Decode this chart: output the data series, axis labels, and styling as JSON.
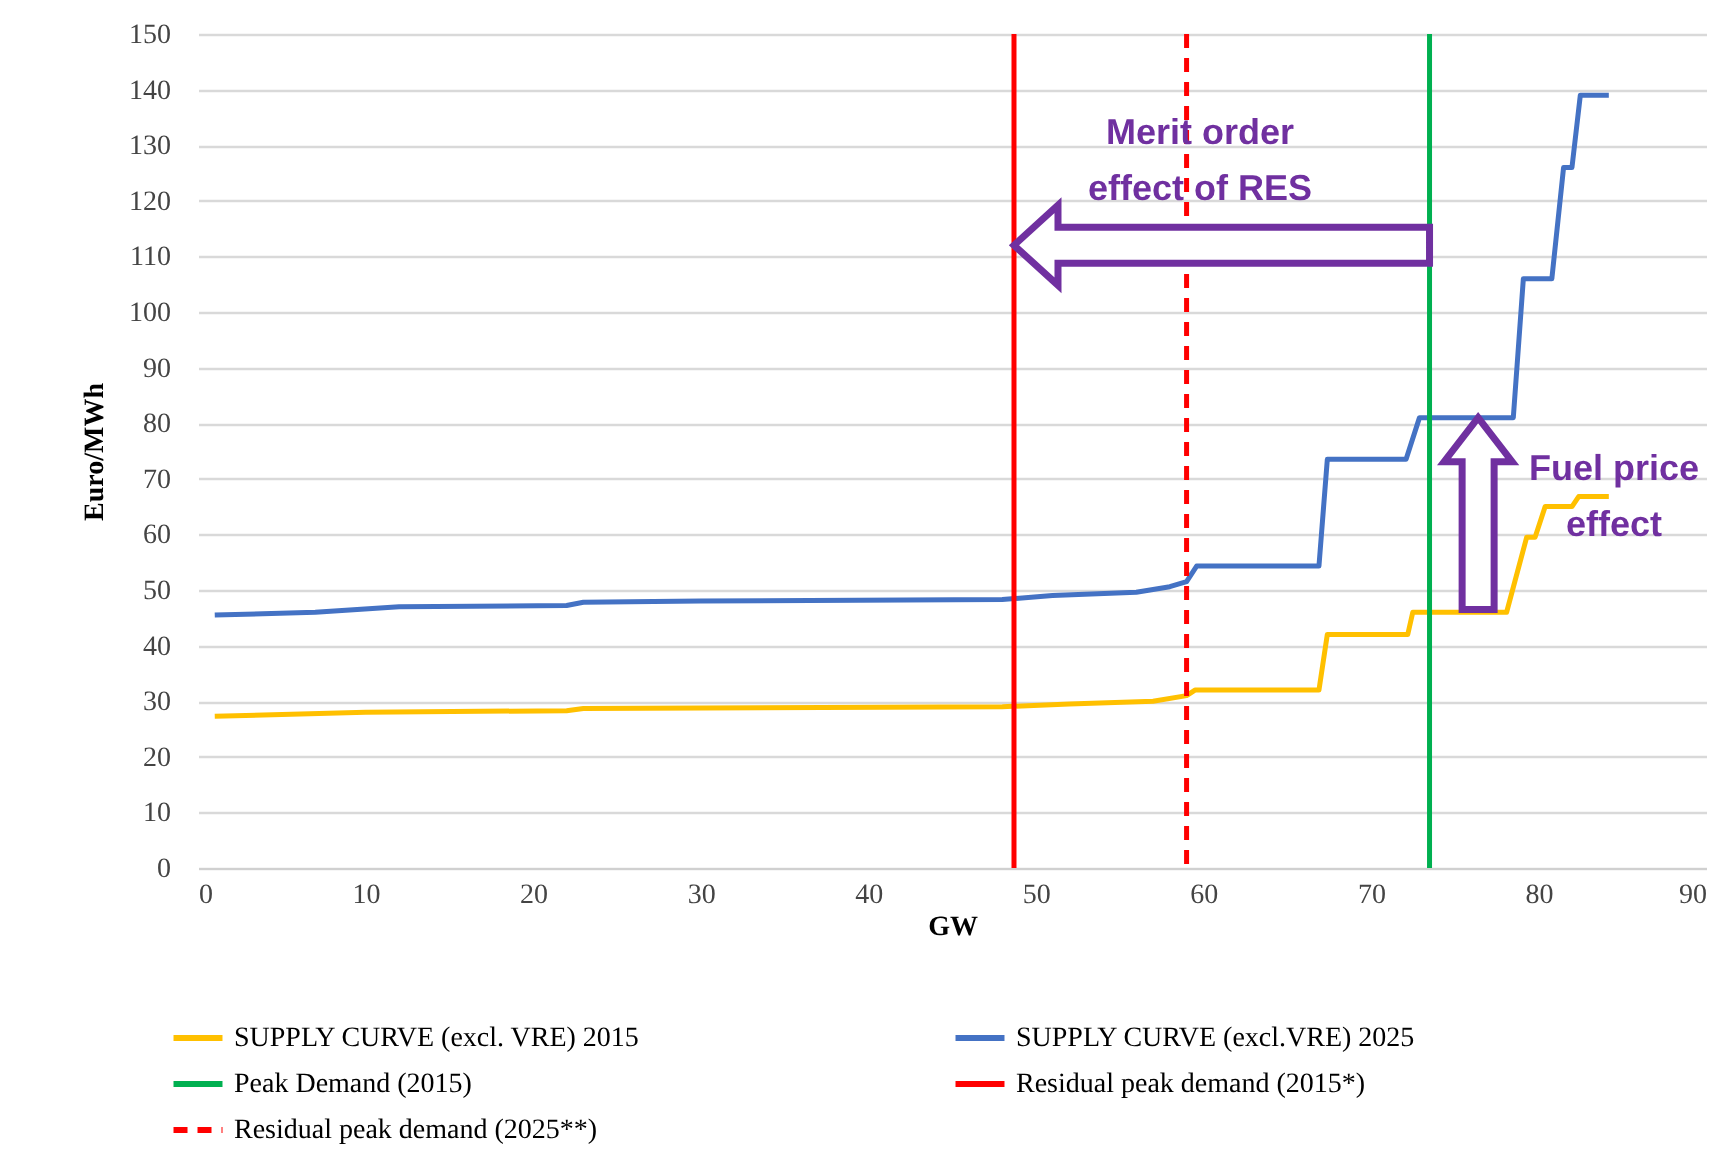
{
  "chart_data": {
    "type": "line",
    "xlabel": "GW",
    "ylabel": "Euro/MWh",
    "xlim": [
      0,
      90
    ],
    "xticks": [
      0,
      10,
      20,
      30,
      40,
      50,
      60,
      70,
      80,
      90
    ],
    "ylim": [
      0,
      150
    ],
    "yticks": [
      0,
      10,
      20,
      30,
      40,
      50,
      60,
      70,
      80,
      90,
      100,
      110,
      120,
      130,
      140,
      150
    ],
    "grid": "y",
    "legend": "bottom",
    "series": [
      {
        "name": "SUPPLY CURVE (excl. VRE) 2015",
        "color": "#ffc000",
        "x": [
          1,
          10,
          22,
          23,
          48,
          52,
          57,
          59,
          59.5,
          66.9,
          67.4,
          72.2,
          72.5,
          78.1,
          79.3,
          79.8,
          80.4,
          82,
          82.4,
          84.2
        ],
        "values": [
          27.3,
          28,
          28.3,
          28.7,
          29,
          29.5,
          30,
          31,
          32,
          32,
          42,
          42,
          46,
          46,
          59.5,
          59.5,
          65,
          65,
          66.8,
          66.8
        ]
      },
      {
        "name": "SUPPLY CURVE (excl.VRE) 2025",
        "color": "#4472c4",
        "x": [
          1,
          7,
          12,
          22,
          23,
          30,
          48,
          51,
          56,
          58,
          59,
          59.6,
          66.9,
          67.4,
          72.1,
          72.9,
          78.5,
          79.1,
          80.8,
          81.5,
          82,
          82.5,
          84.2
        ],
        "values": [
          45.5,
          46,
          47,
          47.2,
          47.8,
          48,
          48.3,
          49,
          49.6,
          50.6,
          51.5,
          54.3,
          54.3,
          73.5,
          73.5,
          81,
          81,
          106,
          106,
          126,
          126,
          139,
          139
        ]
      }
    ],
    "ref_lines": [
      {
        "axis": "x",
        "value": 73.5,
        "label": "Peak Demand (2015)",
        "color": "#00b050"
      },
      {
        "axis": "x",
        "value": 48.7,
        "label": "Residual peak demand (2015*)",
        "color": "#ff0000"
      },
      {
        "axis": "x",
        "value": 59,
        "label": "Residual peak demand (2025**)",
        "color": "#ff0000",
        "line_style": "dashed"
      }
    ],
    "annotations": [
      "Merit order\neffect of RES",
      "Fuel price\neffect"
    ]
  }
}
